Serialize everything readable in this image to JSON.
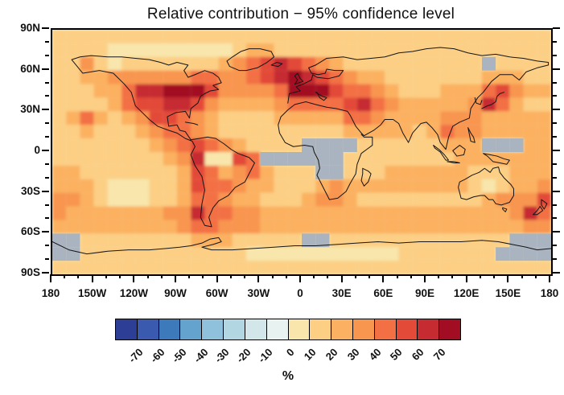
{
  "chart_data": {
    "type": "heatmap",
    "title": "Relative contribution − 95% confidence level",
    "unit": "%",
    "projection": "equirectangular world map, lon −180…180, lat 90N…90S",
    "x_axis": {
      "range": [
        -180,
        180
      ],
      "minor_step": 10,
      "major_step": 30,
      "tick_labels": [
        {
          "text": "180",
          "lon": -180
        },
        {
          "text": "150W",
          "lon": -150
        },
        {
          "text": "120W",
          "lon": -120
        },
        {
          "text": "90W",
          "lon": -90
        },
        {
          "text": "60W",
          "lon": -60
        },
        {
          "text": "30W",
          "lon": -30
        },
        {
          "text": "0",
          "lon": 0
        },
        {
          "text": "30E",
          "lon": 30
        },
        {
          "text": "60E",
          "lon": 60
        },
        {
          "text": "90E",
          "lon": 90
        },
        {
          "text": "120E",
          "lon": 120
        },
        {
          "text": "150E",
          "lon": 150
        },
        {
          "text": "180",
          "lon": 180
        }
      ]
    },
    "y_axis": {
      "range": [
        -90,
        90
      ],
      "minor_step": 10,
      "major_step": 30,
      "tick_labels": [
        {
          "text": "90N",
          "lat": 90
        },
        {
          "text": "60N",
          "lat": 60
        },
        {
          "text": "30N",
          "lat": 30
        },
        {
          "text": "0",
          "lat": 0
        },
        {
          "text": "30S",
          "lat": -30
        },
        {
          "text": "60S",
          "lat": -60
        },
        {
          "text": "90S",
          "lat": -90
        }
      ]
    },
    "colorbar": {
      "boundary_labels": [
        "-70",
        "-60",
        "-50",
        "-40",
        "-30",
        "-20",
        "-10",
        "0",
        "10",
        "20",
        "30",
        "40",
        "50",
        "60",
        "70"
      ],
      "bin_edges_pct": [
        -80,
        -70,
        -60,
        -50,
        -40,
        -30,
        -20,
        -10,
        0,
        10,
        20,
        30,
        40,
        50,
        60,
        70,
        80
      ],
      "colors": [
        "#2d3e96",
        "#3a5ab0",
        "#3d7abc",
        "#64a3cd",
        "#8fc1dc",
        "#b2d7e3",
        "#d3e7ea",
        "#e8f2f1",
        "#f8e6ac",
        "#fccf85",
        "#fbb161",
        "#f8954f",
        "#f37045",
        "#e34a38",
        "#c62b32",
        "#a30d24"
      ],
      "missing_color": "#aab3c0"
    },
    "grid": {
      "description": "Estimated relative contribution (%) on a 10-degree grid; rows from 85N to 85S, columns from 175W to 175E; null = gray (not significant / missing)",
      "lat_centers_start": 85,
      "lat_step": -10,
      "lon_centers_start": -175,
      "lon_step": 10,
      "values_pct": [
        [
          15,
          15,
          15,
          15,
          15,
          15,
          15,
          15,
          15,
          15,
          15,
          15,
          15,
          15,
          15,
          15,
          15,
          15,
          15,
          15,
          15,
          15,
          15,
          15,
          15,
          15,
          15,
          15,
          15,
          15,
          15,
          15,
          15,
          15,
          15,
          15
        ],
        [
          15,
          15,
          15,
          15,
          5,
          5,
          5,
          5,
          5,
          5,
          5,
          5,
          5,
          15,
          25,
          25,
          15,
          15,
          15,
          15,
          15,
          15,
          15,
          15,
          15,
          15,
          15,
          15,
          15,
          15,
          15,
          15,
          15,
          15,
          15,
          15
        ],
        [
          15,
          15,
          35,
          15,
          5,
          15,
          15,
          15,
          15,
          15,
          15,
          15,
          25,
          35,
          45,
          55,
          65,
          55,
          45,
          35,
          25,
          15,
          15,
          15,
          15,
          15,
          15,
          15,
          15,
          15,
          15,
          null,
          15,
          15,
          15,
          15
        ],
        [
          15,
          15,
          25,
          25,
          35,
          35,
          35,
          35,
          35,
          35,
          45,
          45,
          35,
          35,
          45,
          55,
          65,
          75,
          65,
          55,
          45,
          35,
          25,
          25,
          15,
          15,
          15,
          15,
          15,
          15,
          15,
          25,
          25,
          25,
          15,
          15
        ],
        [
          15,
          15,
          15,
          25,
          25,
          45,
          65,
          65,
          75,
          75,
          75,
          55,
          35,
          35,
          35,
          35,
          45,
          75,
          75,
          75,
          55,
          45,
          45,
          35,
          25,
          15,
          15,
          15,
          25,
          25,
          25,
          45,
          55,
          35,
          25,
          25
        ],
        [
          15,
          15,
          15,
          15,
          25,
          45,
          55,
          55,
          65,
          65,
          55,
          35,
          25,
          25,
          25,
          25,
          35,
          45,
          45,
          45,
          45,
          55,
          65,
          45,
          35,
          25,
          25,
          25,
          25,
          25,
          35,
          65,
          45,
          25,
          15,
          15
        ],
        [
          15,
          25,
          45,
          25,
          15,
          25,
          35,
          55,
          55,
          45,
          35,
          25,
          15,
          15,
          15,
          15,
          25,
          25,
          25,
          25,
          25,
          45,
          45,
          35,
          25,
          25,
          25,
          25,
          35,
          35,
          35,
          25,
          25,
          25,
          25,
          25
        ],
        [
          15,
          15,
          25,
          15,
          15,
          15,
          25,
          35,
          45,
          45,
          35,
          25,
          15,
          15,
          15,
          15,
          15,
          15,
          15,
          15,
          15,
          25,
          25,
          25,
          25,
          25,
          15,
          25,
          45,
          35,
          35,
          25,
          25,
          25,
          25,
          25
        ],
        [
          15,
          15,
          15,
          15,
          15,
          15,
          15,
          25,
          35,
          45,
          55,
          45,
          35,
          25,
          15,
          15,
          15,
          15,
          null,
          null,
          null,
          null,
          15,
          15,
          15,
          15,
          15,
          15,
          25,
          25,
          25,
          null,
          null,
          null,
          25,
          25
        ],
        [
          15,
          15,
          15,
          15,
          15,
          15,
          15,
          15,
          25,
          35,
          65,
          5,
          5,
          55,
          45,
          null,
          null,
          null,
          null,
          null,
          null,
          15,
          15,
          15,
          15,
          15,
          15,
          15,
          15,
          25,
          25,
          25,
          25,
          25,
          25,
          25
        ],
        [
          25,
          25,
          15,
          15,
          15,
          15,
          15,
          15,
          15,
          25,
          55,
          45,
          25,
          35,
          45,
          25,
          15,
          15,
          15,
          null,
          null,
          15,
          15,
          15,
          25,
          25,
          25,
          25,
          25,
          25,
          15,
          15,
          15,
          25,
          25,
          25
        ],
        [
          25,
          25,
          25,
          15,
          5,
          5,
          5,
          15,
          15,
          25,
          55,
          45,
          45,
          35,
          25,
          25,
          15,
          15,
          15,
          25,
          35,
          25,
          25,
          25,
          25,
          25,
          25,
          25,
          25,
          25,
          15,
          5,
          15,
          25,
          25,
          35
        ],
        [
          35,
          35,
          25,
          15,
          5,
          5,
          5,
          15,
          15,
          25,
          45,
          45,
          35,
          25,
          25,
          15,
          15,
          15,
          25,
          35,
          35,
          25,
          15,
          15,
          15,
          15,
          15,
          15,
          15,
          15,
          15,
          25,
          35,
          35,
          35,
          55
        ],
        [
          35,
          25,
          25,
          25,
          25,
          25,
          25,
          25,
          35,
          35,
          65,
          45,
          45,
          35,
          35,
          25,
          25,
          25,
          25,
          25,
          25,
          25,
          25,
          25,
          25,
          25,
          25,
          25,
          25,
          25,
          25,
          25,
          25,
          35,
          65,
          45
        ],
        [
          25,
          25,
          25,
          25,
          25,
          25,
          25,
          25,
          25,
          35,
          45,
          45,
          35,
          35,
          35,
          25,
          25,
          25,
          25,
          25,
          25,
          25,
          25,
          25,
          25,
          25,
          25,
          25,
          25,
          25,
          25,
          25,
          25,
          25,
          35,
          35
        ],
        [
          null,
          null,
          15,
          15,
          15,
          15,
          15,
          15,
          15,
          15,
          25,
          25,
          25,
          15,
          15,
          15,
          15,
          15,
          null,
          null,
          15,
          15,
          15,
          15,
          15,
          15,
          15,
          15,
          15,
          15,
          15,
          15,
          15,
          null,
          null,
          null
        ],
        [
          null,
          null,
          15,
          15,
          15,
          15,
          15,
          15,
          15,
          15,
          15,
          15,
          15,
          15,
          5,
          5,
          5,
          5,
          5,
          5,
          5,
          5,
          5,
          5,
          5,
          15,
          15,
          15,
          15,
          15,
          15,
          15,
          null,
          null,
          null,
          null
        ],
        [
          15,
          15,
          15,
          15,
          15,
          15,
          15,
          15,
          15,
          15,
          15,
          15,
          15,
          15,
          15,
          15,
          15,
          15,
          15,
          15,
          15,
          15,
          15,
          15,
          15,
          15,
          15,
          15,
          15,
          15,
          15,
          15,
          15,
          15,
          15,
          15
        ]
      ]
    }
  }
}
